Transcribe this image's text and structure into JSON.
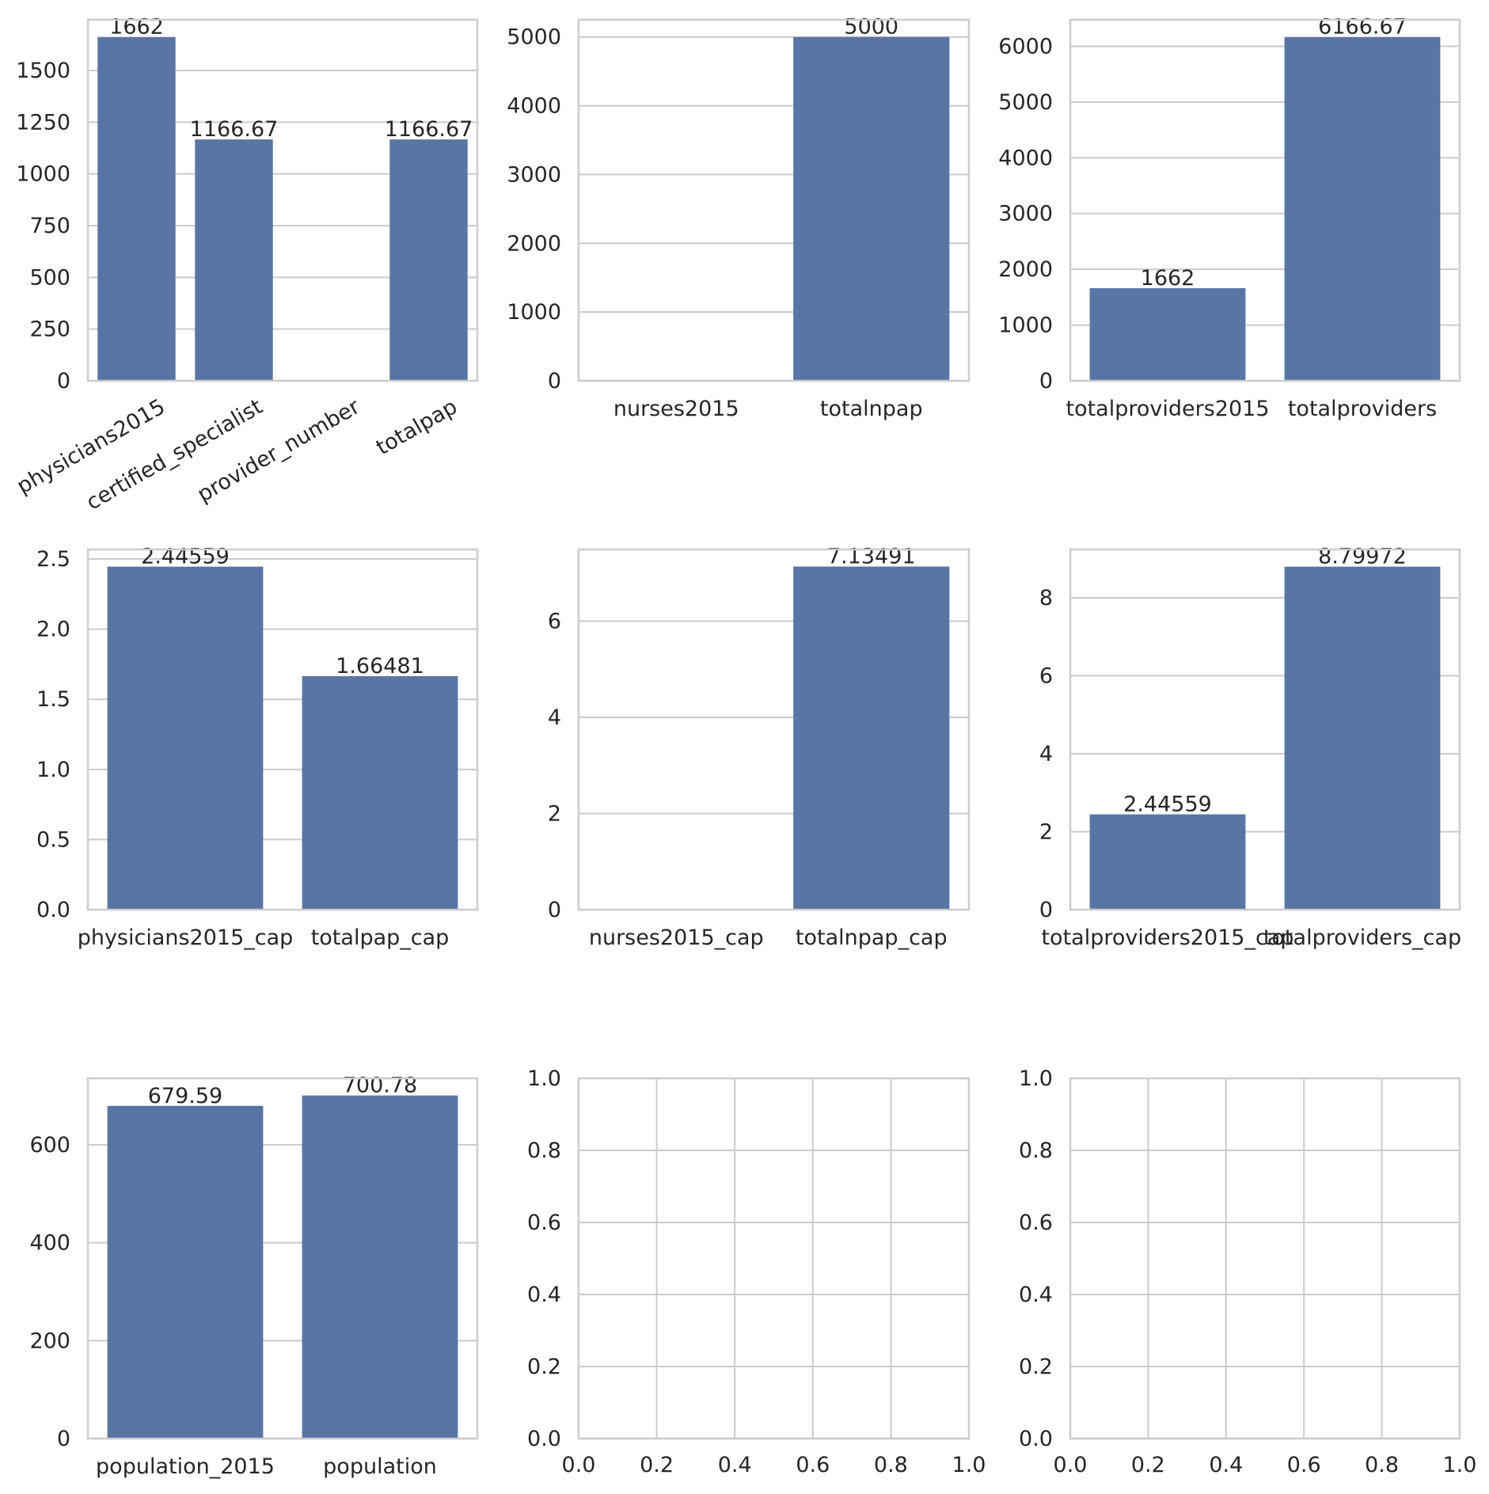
{
  "colors": {
    "bar": "#5975a4",
    "grid": "#cccccc",
    "spine": "#cccccc",
    "text": "#262626",
    "background": "#ffffff"
  },
  "chart_data": [
    {
      "type": "bar",
      "categories": [
        "physicians2015",
        "certified_specialist",
        "provider_number",
        "totalpap"
      ],
      "values": [
        1662,
        1166.67,
        0,
        1166.67
      ],
      "bar_labels": [
        "1662",
        "1166.67",
        "",
        "1166.67"
      ],
      "yticks": [
        "0",
        "250",
        "500",
        "750",
        "1000",
        "1250",
        "1500"
      ],
      "ytick_values": [
        0,
        250,
        500,
        750,
        1000,
        1250,
        1500
      ],
      "ylim": [
        0,
        1745
      ],
      "xtick_rotation": 30,
      "grid": true
    },
    {
      "type": "bar",
      "categories": [
        "nurses2015",
        "totalnpap"
      ],
      "values": [
        0,
        5000
      ],
      "bar_labels": [
        "",
        "5000"
      ],
      "yticks": [
        "0",
        "1000",
        "2000",
        "3000",
        "4000",
        "5000"
      ],
      "ytick_values": [
        0,
        1000,
        2000,
        3000,
        4000,
        5000
      ],
      "ylim": [
        0,
        5250
      ],
      "grid": true
    },
    {
      "type": "bar",
      "categories": [
        "totalproviders2015",
        "totalproviders"
      ],
      "values": [
        1662,
        6166.67
      ],
      "bar_labels": [
        "1662",
        "6166.67"
      ],
      "yticks": [
        "0",
        "1000",
        "2000",
        "3000",
        "4000",
        "5000",
        "6000"
      ],
      "ytick_values": [
        0,
        1000,
        2000,
        3000,
        4000,
        5000,
        6000
      ],
      "ylim": [
        0,
        6475
      ],
      "grid": true
    },
    {
      "type": "bar",
      "categories": [
        "physicians2015_cap",
        "totalpap_cap"
      ],
      "values": [
        2.44559,
        1.66481
      ],
      "bar_labels": [
        "2.44559",
        "1.66481"
      ],
      "yticks": [
        "0.0",
        "0.5",
        "1.0",
        "1.5",
        "2.0",
        "2.5"
      ],
      "ytick_values": [
        0,
        0.5,
        1.0,
        1.5,
        2.0,
        2.5
      ],
      "ylim": [
        0,
        2.568
      ],
      "grid": true
    },
    {
      "type": "bar",
      "categories": [
        "nurses2015_cap",
        "totalnpap_cap"
      ],
      "values": [
        0,
        7.13491
      ],
      "bar_labels": [
        "",
        "7.13491"
      ],
      "yticks": [
        "0",
        "2",
        "4",
        "6"
      ],
      "ytick_values": [
        0,
        2,
        4,
        6
      ],
      "ylim": [
        0,
        7.49
      ],
      "grid": true
    },
    {
      "type": "bar",
      "categories": [
        "totalproviders2015_cap",
        "totalproviders_cap"
      ],
      "values": [
        2.44559,
        8.79972
      ],
      "bar_labels": [
        "2.44559",
        "8.79972"
      ],
      "yticks": [
        "0",
        "2",
        "4",
        "6",
        "8"
      ],
      "ytick_values": [
        0,
        2,
        4,
        6,
        8
      ],
      "ylim": [
        0,
        9.24
      ],
      "grid": true
    },
    {
      "type": "bar",
      "categories": [
        "population_2015",
        "population"
      ],
      "values": [
        679.59,
        700.78
      ],
      "bar_labels": [
        "679.59",
        "700.78"
      ],
      "yticks": [
        "0",
        "200",
        "400",
        "600"
      ],
      "ytick_values": [
        0,
        200,
        400,
        600
      ],
      "ylim": [
        0,
        735.8
      ],
      "grid": true
    },
    {
      "type": "empty",
      "xticks": [
        "0.0",
        "0.2",
        "0.4",
        "0.6",
        "0.8",
        "1.0"
      ],
      "yticks": [
        "0.0",
        "0.2",
        "0.4",
        "0.6",
        "0.8",
        "1.0"
      ],
      "xlim": [
        0,
        1
      ],
      "ylim": [
        0,
        1
      ],
      "grid": true
    },
    {
      "type": "empty",
      "xticks": [
        "0.0",
        "0.2",
        "0.4",
        "0.6",
        "0.8",
        "1.0"
      ],
      "yticks": [
        "0.0",
        "0.2",
        "0.4",
        "0.6",
        "0.8",
        "1.0"
      ],
      "xlim": [
        0,
        1
      ],
      "ylim": [
        0,
        1
      ],
      "grid": true
    }
  ]
}
